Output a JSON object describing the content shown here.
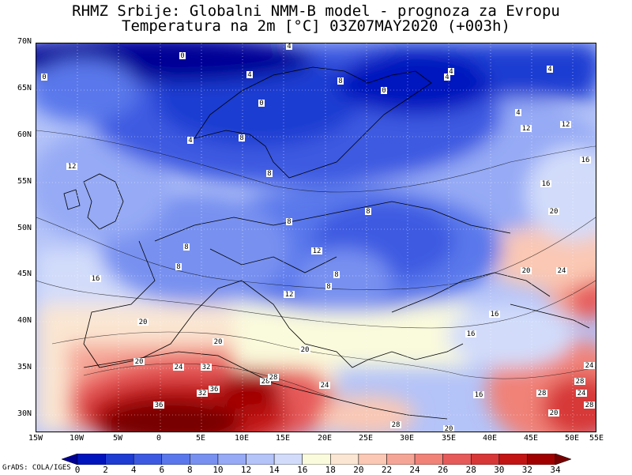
{
  "title": {
    "line1": "RHMZ Srbije: Globalni NMM-B model - prognoza za Evropu",
    "line2": "Temperatura na 2m [°C] 03Z07MAY2020 (+003h)"
  },
  "credit": "GrADS: COLA/IGES",
  "axes": {
    "lat_ticks": [
      "70N",
      "65N",
      "60N",
      "55N",
      "50N",
      "45N",
      "40N",
      "35N",
      "30N"
    ],
    "lon_ticks": [
      "15W",
      "10W",
      "5W",
      "0",
      "5E",
      "10E",
      "15E",
      "20E",
      "25E",
      "30E",
      "35E",
      "40E",
      "45E",
      "50E",
      "55E"
    ]
  },
  "colorbar": {
    "labels": [
      "0",
      "2",
      "4",
      "6",
      "8",
      "10",
      "12",
      "14",
      "16",
      "18",
      "20",
      "22",
      "24",
      "26",
      "28",
      "30",
      "32",
      "34"
    ],
    "colors": [
      "#000096",
      "#0014be",
      "#1e3cd2",
      "#3c5ae1",
      "#5a78eb",
      "#7891f0",
      "#96aaf5",
      "#b4c3f8",
      "#d2dcfa",
      "#fafadc",
      "#fae6d2",
      "#fac8b4",
      "#f5a596",
      "#f08278",
      "#e65a5a",
      "#d73737",
      "#c31414",
      "#a00000",
      "#780000"
    ]
  },
  "contour_labels": [
    "0",
    "4",
    "0",
    "4",
    "8",
    "4",
    "0",
    "4",
    "4",
    "4",
    "0",
    "4",
    "8",
    "12",
    "8",
    "12",
    "12",
    "16",
    "16",
    "20",
    "8",
    "8",
    "8",
    "8",
    "8",
    "12",
    "8",
    "12",
    "16",
    "20",
    "24",
    "20",
    "16",
    "16",
    "20",
    "20",
    "20",
    "24",
    "28",
    "32",
    "36",
    "28",
    "32",
    "36",
    "28",
    "24",
    "28",
    "20",
    "16",
    "28",
    "20",
    "24",
    "28",
    "24"
  ]
}
